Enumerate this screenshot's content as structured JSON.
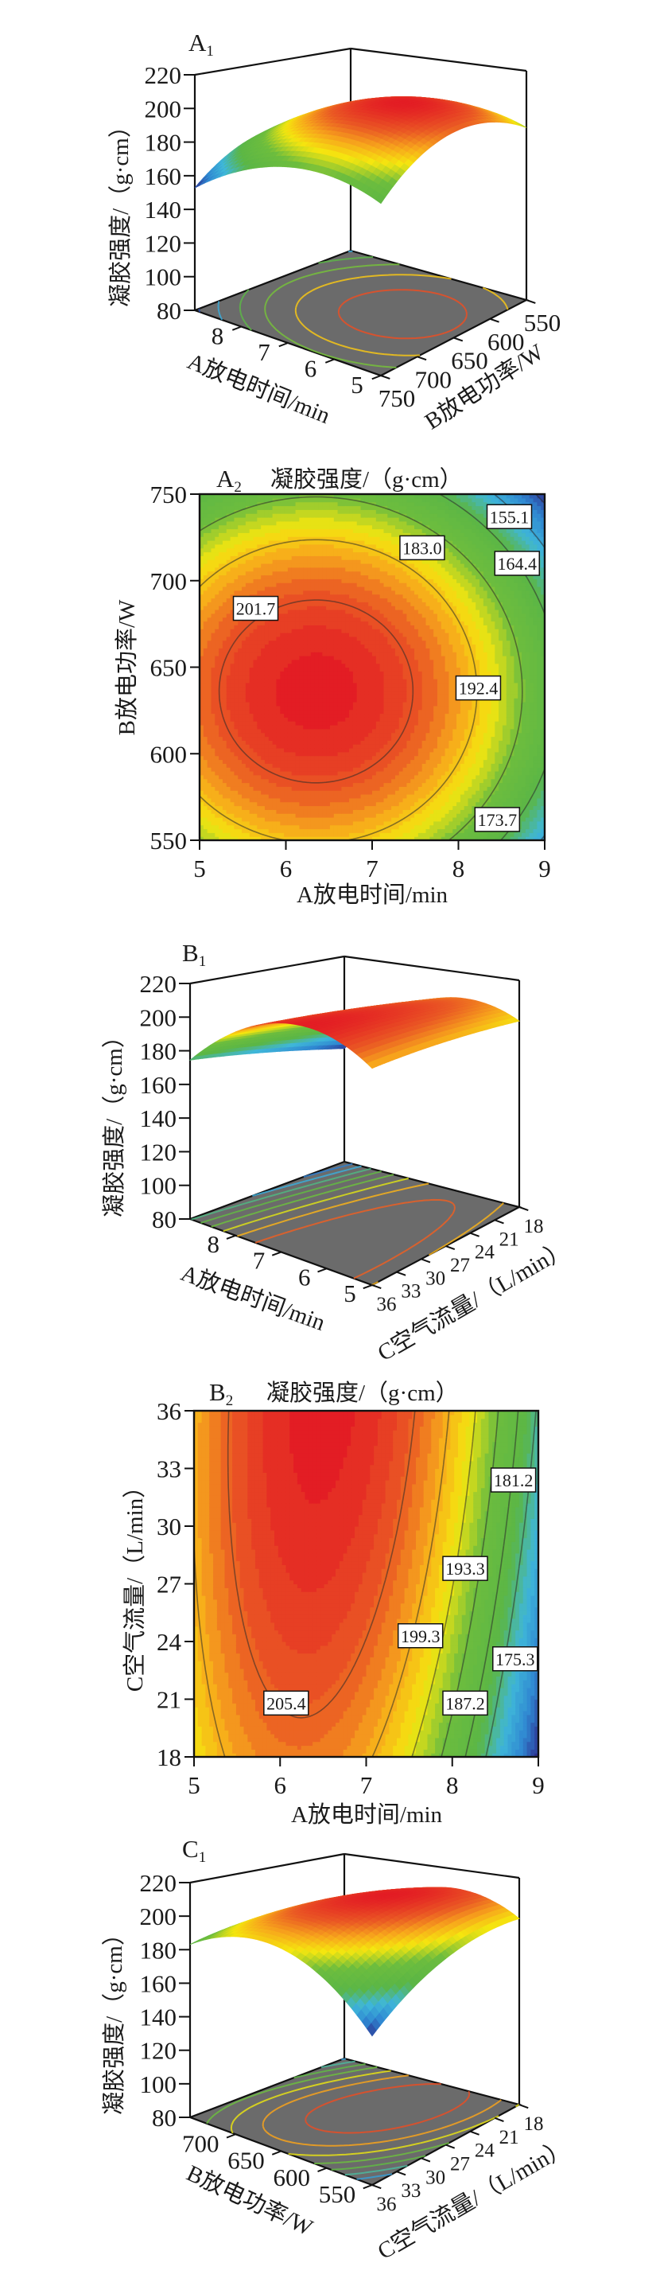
{
  "chart_data": [
    {
      "id": "A1",
      "type": "surface3d",
      "label": "A",
      "label_sub": "1",
      "x": {
        "label": "A放电时间/min",
        "range": [
          5,
          9
        ],
        "ticks": [
          8,
          7,
          6,
          5
        ]
      },
      "y": {
        "label": "B放电功率/W",
        "range": [
          550,
          750
        ],
        "ticks": [
          750,
          700,
          650,
          600,
          550
        ]
      },
      "z": {
        "label": "凝胶强度/（g·cm）",
        "range": [
          80,
          220
        ],
        "ticks": [
          80,
          100,
          120,
          140,
          160,
          180,
          200,
          220
        ]
      },
      "surface": {
        "z0": 207,
        "xc": 6.35,
        "yc": 636,
        "lx": 0,
        "ly": 0,
        "p": 4.2,
        "q": 0.0019,
        "r": 0
      },
      "floor_contour_levels": [
        155.1,
        164.4,
        173.7,
        183.0,
        192.4,
        201.7
      ]
    },
    {
      "id": "A2",
      "type": "contour",
      "label": "A",
      "label_sub": "2",
      "title": "凝胶强度/（g·cm）",
      "x": {
        "label": "A放电时间/min",
        "range": [
          5,
          9
        ],
        "ticks": [
          5,
          6,
          7,
          8,
          9
        ]
      },
      "y": {
        "label": "B放电功率/W",
        "range": [
          550,
          750
        ],
        "ticks": [
          550,
          600,
          650,
          700,
          750
        ]
      },
      "surface": {
        "z0": 207,
        "xc": 6.35,
        "yc": 636,
        "lx": 0,
        "ly": 0,
        "p": 4.2,
        "q": 0.0019,
        "r": 0
      },
      "contours": [
        {
          "level": "155.1",
          "at": [
            8.59,
            737
          ]
        },
        {
          "level": "164.4",
          "at": [
            8.68,
            710
          ]
        },
        {
          "level": "173.7",
          "at": [
            8.45,
            562
          ]
        },
        {
          "level": "183.0",
          "at": [
            7.58,
            719
          ]
        },
        {
          "level": "192.4",
          "at": [
            8.23,
            638
          ]
        },
        {
          "level": "201.7",
          "at": [
            5.65,
            684
          ]
        }
      ]
    },
    {
      "id": "B1",
      "type": "surface3d",
      "label": "B",
      "label_sub": "1",
      "x": {
        "label": "A放电时间/min",
        "range": [
          5,
          9
        ],
        "ticks": [
          8,
          7,
          6,
          5
        ]
      },
      "y": {
        "label": "C空气流量/（L/min）",
        "range": [
          18,
          36
        ],
        "ticks": [
          36,
          33,
          30,
          27,
          24,
          21,
          18
        ]
      },
      "z": {
        "label": "凝胶强度/（g·cm）",
        "range": [
          80,
          220
        ],
        "ticks": [
          80,
          100,
          120,
          140,
          160,
          180,
          200,
          220
        ]
      },
      "surface": {
        "z0": 209.84,
        "xc": 6.35,
        "yc": 27,
        "lx": 0,
        "ly": 0.484,
        "p": 6,
        "q": 0.02335,
        "r": 0.18
      },
      "floor_contour_levels": [
        163.2,
        169.3,
        175.3,
        181.2,
        187.2,
        193.3,
        199.3,
        205.4
      ]
    },
    {
      "id": "B2",
      "type": "contour",
      "label": "B",
      "label_sub": "2",
      "title": "凝胶强度/（g·cm）",
      "x": {
        "label": "A放电时间/min",
        "range": [
          5,
          9
        ],
        "ticks": [
          5,
          6,
          7,
          8,
          9
        ]
      },
      "y": {
        "label": "C空气流量/（L/min）",
        "range": [
          18,
          36
        ],
        "ticks": [
          18,
          21,
          24,
          27,
          30,
          33,
          36
        ]
      },
      "surface": {
        "z0": 209.84,
        "xc": 6.35,
        "yc": 27,
        "lx": 0,
        "ly": 0.484,
        "p": 6,
        "q": 0.02335,
        "r": 0.18
      },
      "contours": [
        {
          "level": "175.3",
          "at": [
            8.73,
            23.1
          ]
        },
        {
          "level": "181.2",
          "at": [
            8.71,
            32.4
          ]
        },
        {
          "level": "187.2",
          "at": [
            8.15,
            20.8
          ]
        },
        {
          "level": "193.3",
          "at": [
            8.15,
            27.8
          ]
        },
        {
          "level": "199.3",
          "at": [
            7.63,
            24.3
          ]
        },
        {
          "level": "205.4",
          "at": [
            6.07,
            20.8
          ]
        }
      ]
    },
    {
      "id": "C1",
      "type": "surface3d",
      "label": "C",
      "label_sub": "1",
      "x": {
        "label": "B放电功率/W",
        "range": [
          550,
          750
        ],
        "ticks": [
          700,
          650,
          600,
          550
        ]
      },
      "y": {
        "label": "C空气流量/（L/min）",
        "range": [
          18,
          36
        ],
        "ticks": [
          36,
          33,
          30,
          27,
          24,
          21,
          18
        ]
      },
      "z": {
        "label": "凝胶强度/（g·cm）",
        "range": [
          80,
          220
        ],
        "ticks": [
          80,
          100,
          120,
          140,
          160,
          180,
          200,
          220
        ]
      },
      "surface": {
        "z0": 211.5,
        "xc": 648,
        "yc": 24,
        "lx": -0.038,
        "ly": 0.154,
        "p": 0.00235,
        "q": 0.122,
        "r": 0.0128
      },
      "floor_contour_levels": [
        171,
        177,
        183,
        189,
        195,
        201,
        207
      ]
    }
  ]
}
